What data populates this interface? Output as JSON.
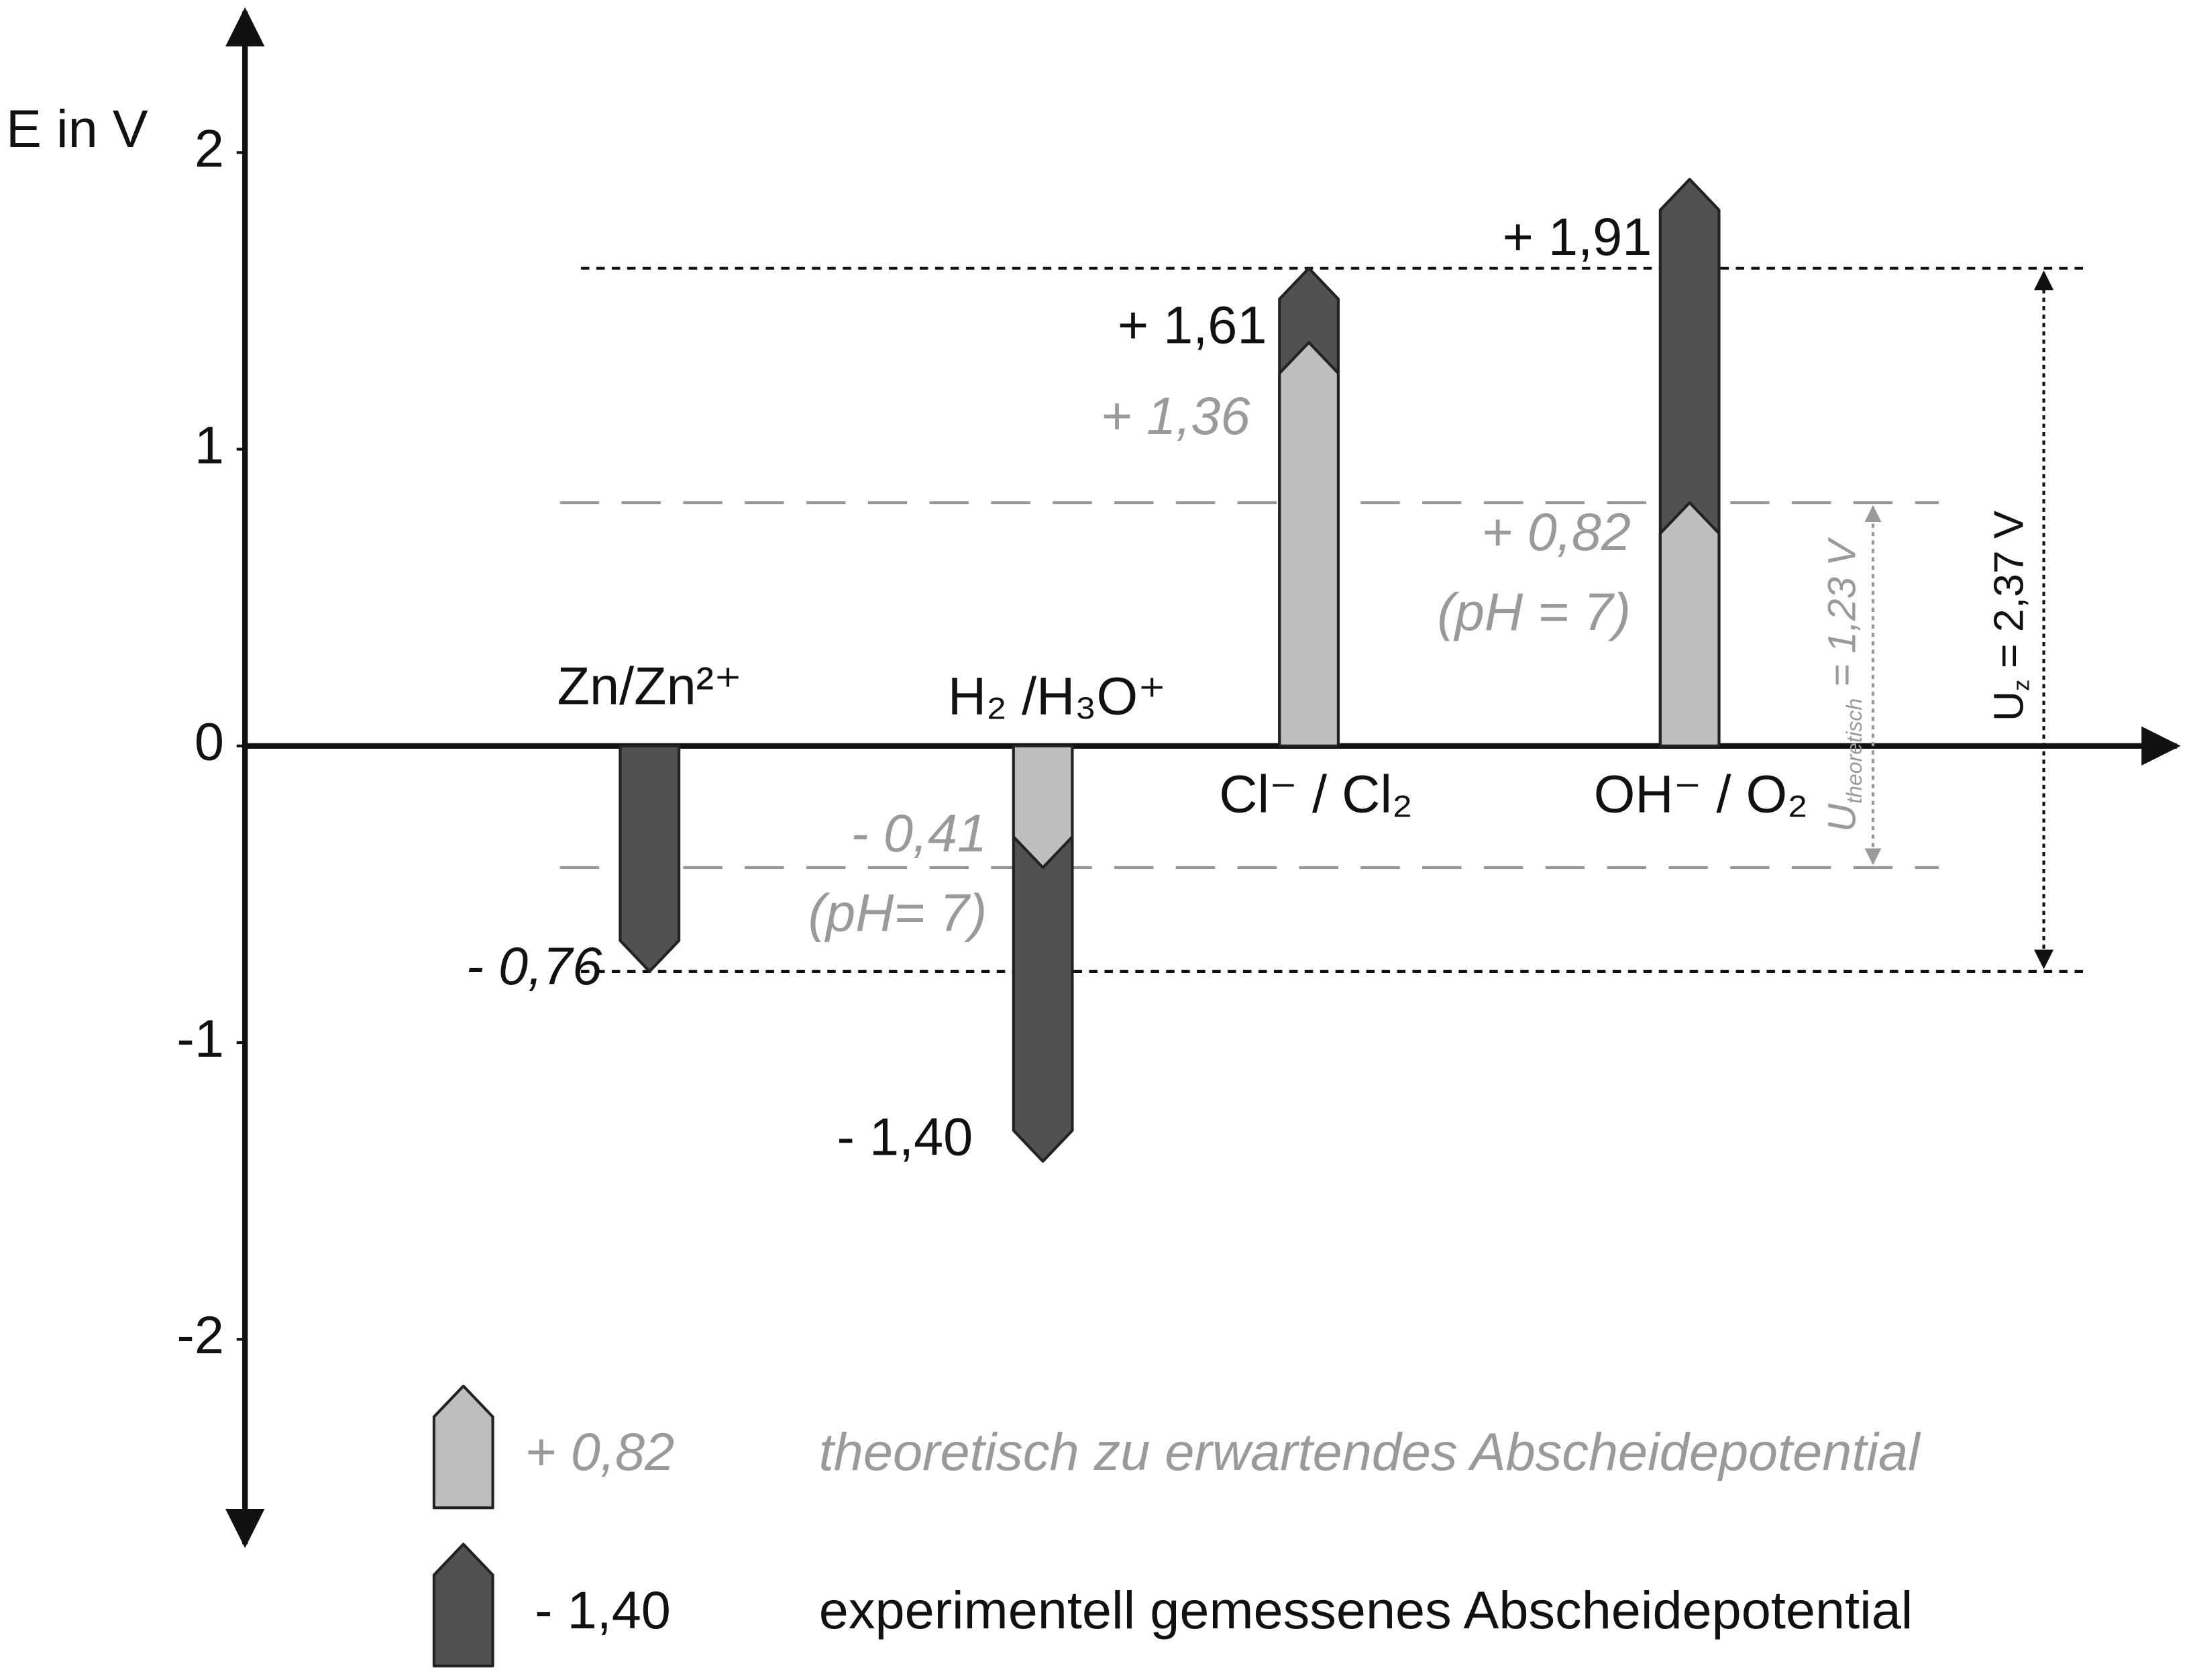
{
  "chart_data": {
    "type": "arrow-bar",
    "y_label": "E in V",
    "categories": [
      "Zn/Zn²⁺",
      "H₂ /H₃O⁺",
      "Cl⁻ / Cl₂",
      "OH⁻ / O₂"
    ],
    "series": [
      {
        "name": "experimentell gemessenes Abscheidepotential",
        "legend_sample": "- 1,40",
        "color": "#505153",
        "values": [
          -0.76,
          -1.4,
          1.61,
          1.91
        ],
        "value_labels": [
          "- 0,76",
          "- 1,40",
          "+ 1,61",
          "+ 1,91"
        ]
      },
      {
        "name": "theoretisch zu erwartendes Abscheidepotential",
        "legend_sample": "+ 0,82",
        "color": "#bdbebf",
        "values": [
          null,
          -0.41,
          1.36,
          0.82
        ],
        "value_labels": [
          null,
          "- 0,41",
          "+ 1,36",
          "+ 0,82"
        ],
        "notes": [
          null,
          "(pH= 7)",
          null,
          "(pH = 7)"
        ]
      }
    ],
    "ylim": [
      -2.7,
      2.5
    ],
    "yticks": [
      -2,
      -1,
      0,
      1,
      2
    ],
    "grid": false,
    "span_experimental": {
      "symbol": "U",
      "subscript": "z",
      "text": "= 2,37 V"
    },
    "span_theoretical": {
      "symbol": "U",
      "subscript": "theoretisch",
      "text": "= 1,23 V"
    }
  }
}
